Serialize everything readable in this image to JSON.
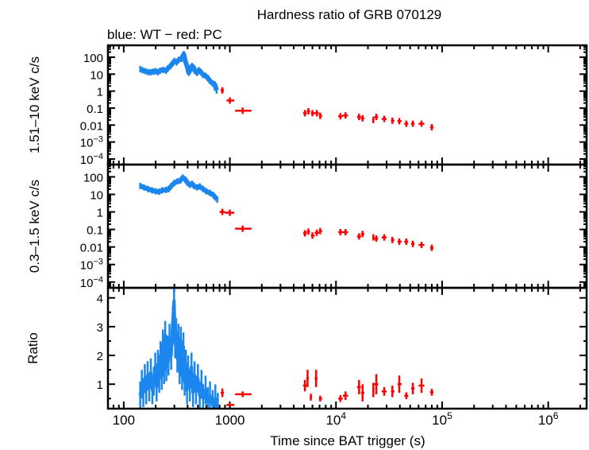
{
  "chart_data": {
    "type": "scatter",
    "title": "Hardness ratio of GRB 070129",
    "subtitle": "blue: WT − red: PC",
    "xlabel": "Time since BAT trigger (s)",
    "xscale": "log",
    "xlim": [
      71,
      2300000
    ],
    "xticks": [
      {
        "v": 100,
        "label": "100"
      },
      {
        "v": 1000,
        "label": "1000"
      },
      {
        "v": 10000,
        "base": "10",
        "exp": "4"
      },
      {
        "v": 100000,
        "base": "10",
        "exp": "5"
      },
      {
        "v": 1000000,
        "base": "10",
        "exp": "6"
      }
    ],
    "colors": {
      "WT": "#1b86ee",
      "PC": "#ff0000"
    },
    "panels": [
      {
        "ylabel": "1.51–10 keV c/s",
        "yscale": "log",
        "ylim": [
          4.7e-05,
          500
        ],
        "yticks": [
          {
            "v": 100,
            "label": "100"
          },
          {
            "v": 10,
            "label": "10"
          },
          {
            "v": 1,
            "label": "1"
          },
          {
            "v": 0.1,
            "label": "0.1"
          },
          {
            "v": 0.01,
            "label": "0.01"
          },
          {
            "v": 0.001,
            "base": "10",
            "exp": "−3"
          },
          {
            "v": 0.0001,
            "base": "10",
            "exp": "−4"
          }
        ],
        "WT": [
          [
            143,
            20
          ],
          [
            150,
            17
          ],
          [
            160,
            15
          ],
          [
            170,
            13
          ],
          [
            180,
            13
          ],
          [
            190,
            14
          ],
          [
            200,
            15
          ],
          [
            210,
            13
          ],
          [
            220,
            16
          ],
          [
            235,
            18
          ],
          [
            250,
            16
          ],
          [
            260,
            22
          ],
          [
            275,
            30
          ],
          [
            290,
            45
          ],
          [
            300,
            60
          ],
          [
            315,
            50
          ],
          [
            330,
            70
          ],
          [
            350,
            80
          ],
          [
            368,
            150
          ],
          [
            380,
            60
          ],
          [
            395,
            30
          ],
          [
            410,
            12
          ],
          [
            425,
            20
          ],
          [
            440,
            30
          ],
          [
            455,
            25
          ],
          [
            470,
            15
          ],
          [
            490,
            12
          ],
          [
            510,
            17
          ],
          [
            530,
            14
          ],
          [
            560,
            9
          ],
          [
            590,
            8
          ],
          [
            620,
            6
          ],
          [
            650,
            4
          ],
          [
            690,
            2.8
          ],
          [
            720,
            2.5
          ],
          [
            750,
            1.1
          ]
        ],
        "PC": [
          [
            850,
            1.1,
            820,
            880
          ],
          [
            1000,
            0.28,
            930,
            1100
          ],
          [
            1320,
            0.07,
            1120,
            1600
          ],
          [
            5100,
            0.05,
            4900,
            5300
          ],
          [
            5500,
            0.065,
            5300,
            5700
          ],
          [
            6000,
            0.05,
            5800,
            6300
          ],
          [
            6600,
            0.05,
            6300,
            6900
          ],
          [
            7100,
            0.035,
            6900,
            7400
          ],
          [
            11000,
            0.033,
            10500,
            11600
          ],
          [
            12300,
            0.037,
            11600,
            13000
          ],
          [
            16500,
            0.03,
            15800,
            17200
          ],
          [
            17800,
            0.025,
            17200,
            18500
          ],
          [
            22500,
            0.02,
            22000,
            23000
          ],
          [
            24000,
            0.03,
            23000,
            25000
          ],
          [
            28500,
            0.023,
            27000,
            30000
          ],
          [
            34000,
            0.018,
            33000,
            35500
          ],
          [
            39500,
            0.017,
            38000,
            41500
          ],
          [
            46000,
            0.012,
            44000,
            48000
          ],
          [
            53000,
            0.012,
            51000,
            55000
          ],
          [
            64000,
            0.012,
            60000,
            68000
          ],
          [
            80000,
            0.0075,
            77000,
            83000
          ]
        ]
      },
      {
        "ylabel": "0.3–1.5 keV c/s",
        "yscale": "log",
        "ylim": [
          4.7e-05,
          500
        ],
        "yticks": [
          {
            "v": 100,
            "label": "100"
          },
          {
            "v": 10,
            "label": "10"
          },
          {
            "v": 1,
            "label": "1"
          },
          {
            "v": 0.1,
            "label": "0.1"
          },
          {
            "v": 0.01,
            "label": "0.01"
          },
          {
            "v": 0.001,
            "base": "10",
            "exp": "−3"
          },
          {
            "v": 0.0001,
            "base": "10",
            "exp": "−4"
          }
        ],
        "WT": [
          [
            143,
            30
          ],
          [
            155,
            25
          ],
          [
            170,
            20
          ],
          [
            185,
            17
          ],
          [
            200,
            15
          ],
          [
            215,
            14
          ],
          [
            230,
            17
          ],
          [
            250,
            18
          ],
          [
            265,
            20
          ],
          [
            280,
            30
          ],
          [
            300,
            45
          ],
          [
            320,
            55
          ],
          [
            340,
            60
          ],
          [
            360,
            90
          ],
          [
            380,
            70
          ],
          [
            400,
            45
          ],
          [
            420,
            35
          ],
          [
            440,
            40
          ],
          [
            460,
            30
          ],
          [
            490,
            25
          ],
          [
            520,
            28
          ],
          [
            560,
            20
          ],
          [
            600,
            15
          ],
          [
            650,
            12
          ],
          [
            700,
            9
          ],
          [
            760,
            5
          ]
        ],
        "PC": [
          [
            850,
            1.0,
            800,
            900
          ],
          [
            1000,
            0.9,
            900,
            1100
          ],
          [
            1320,
            0.11,
            1120,
            1600
          ],
          [
            5100,
            0.06,
            4900,
            5300
          ],
          [
            5500,
            0.075,
            5300,
            5700
          ],
          [
            6000,
            0.045,
            5800,
            6300
          ],
          [
            6600,
            0.065,
            6300,
            6900
          ],
          [
            7100,
            0.08,
            6900,
            7400
          ],
          [
            11000,
            0.07,
            10500,
            11600
          ],
          [
            12300,
            0.07,
            11600,
            13000
          ],
          [
            16500,
            0.04,
            15800,
            17200
          ],
          [
            17800,
            0.055,
            17200,
            18500
          ],
          [
            22500,
            0.035,
            22000,
            23000
          ],
          [
            24000,
            0.03,
            23000,
            25000
          ],
          [
            28500,
            0.035,
            27000,
            30000
          ],
          [
            34000,
            0.025,
            33000,
            35500
          ],
          [
            39500,
            0.02,
            38000,
            41500
          ],
          [
            46000,
            0.02,
            44000,
            48000
          ],
          [
            53000,
            0.015,
            51000,
            55000
          ],
          [
            64000,
            0.013,
            60000,
            68000
          ],
          [
            80000,
            0.009,
            77000,
            83000
          ]
        ]
      },
      {
        "ylabel": "Ratio",
        "yscale": "linear",
        "ylim": [
          0.15,
          4.35
        ],
        "yticks": [
          {
            "v": 1,
            "label": "1"
          },
          {
            "v": 2,
            "label": "2"
          },
          {
            "v": 3,
            "label": "3"
          },
          {
            "v": 4,
            "label": "4"
          }
        ],
        "WT": [
          [
            143,
            0.6
          ],
          [
            148,
            1.0
          ],
          [
            153,
            0.7
          ],
          [
            158,
            1.2
          ],
          [
            163,
            0.8
          ],
          [
            168,
            1.3
          ],
          [
            174,
            0.9
          ],
          [
            180,
            1.4
          ],
          [
            186,
            0.8
          ],
          [
            192,
            1.1
          ],
          [
            198,
            1.6
          ],
          [
            204,
            0.9
          ],
          [
            210,
            1.7
          ],
          [
            216,
            1.2
          ],
          [
            222,
            2.0
          ],
          [
            228,
            1.3
          ],
          [
            234,
            2.4
          ],
          [
            240,
            1.5
          ],
          [
            246,
            2.7
          ],
          [
            252,
            1.6
          ],
          [
            258,
            2.2
          ],
          [
            264,
            1.8
          ],
          [
            270,
            2.6
          ],
          [
            280,
            2.0
          ],
          [
            290,
            3.2
          ],
          [
            298,
            3.9
          ],
          [
            305,
            2.4
          ],
          [
            312,
            2.8
          ],
          [
            320,
            1.9
          ],
          [
            328,
            2.6
          ],
          [
            336,
            1.5
          ],
          [
            345,
            2.5
          ],
          [
            355,
            1.3
          ],
          [
            365,
            2.3
          ],
          [
            375,
            1.1
          ],
          [
            385,
            1.7
          ],
          [
            395,
            0.8
          ],
          [
            405,
            1.5
          ],
          [
            420,
            0.9
          ],
          [
            435,
            1.6
          ],
          [
            450,
            0.7
          ],
          [
            465,
            1.3
          ],
          [
            480,
            0.8
          ],
          [
            500,
            1.2
          ],
          [
            520,
            0.6
          ],
          [
            540,
            1.0
          ],
          [
            560,
            0.5
          ],
          [
            590,
            0.8
          ],
          [
            620,
            0.4
          ],
          [
            650,
            0.6
          ],
          [
            690,
            0.3
          ],
          [
            730,
            0.5
          ],
          [
            770,
            0.2
          ]
        ],
        "PC": [
          [
            850,
            0.7,
            820,
            880,
            0.15
          ],
          [
            1000,
            0.28,
            930,
            1100,
            0.05
          ],
          [
            1320,
            0.65,
            1120,
            1600,
            0.1
          ],
          [
            5100,
            0.95,
            4900,
            5300,
            0.2
          ],
          [
            5400,
            1.2,
            5250,
            5550,
            0.3
          ],
          [
            5800,
            0.55,
            5650,
            5950,
            0.12
          ],
          [
            6500,
            1.2,
            6300,
            6700,
            0.3
          ],
          [
            7100,
            0.5,
            6900,
            7400,
            0.1
          ],
          [
            11000,
            0.5,
            10500,
            11600,
            0.12
          ],
          [
            12300,
            0.6,
            11600,
            13000,
            0.15
          ],
          [
            16500,
            0.9,
            15800,
            17200,
            0.25
          ],
          [
            17800,
            0.7,
            17200,
            18500,
            0.3
          ],
          [
            22500,
            0.8,
            22000,
            23000,
            0.25
          ],
          [
            24000,
            1.0,
            23000,
            25000,
            0.35
          ],
          [
            28500,
            0.75,
            27000,
            30000,
            0.15
          ],
          [
            34000,
            0.75,
            33000,
            35500,
            0.2
          ],
          [
            39500,
            1.0,
            38000,
            41500,
            0.3
          ],
          [
            46000,
            0.6,
            44000,
            48000,
            0.12
          ],
          [
            53000,
            0.85,
            51000,
            55000,
            0.2
          ],
          [
            64000,
            0.95,
            60000,
            68000,
            0.25
          ],
          [
            80000,
            0.72,
            77000,
            83000,
            0.12
          ]
        ]
      }
    ]
  }
}
